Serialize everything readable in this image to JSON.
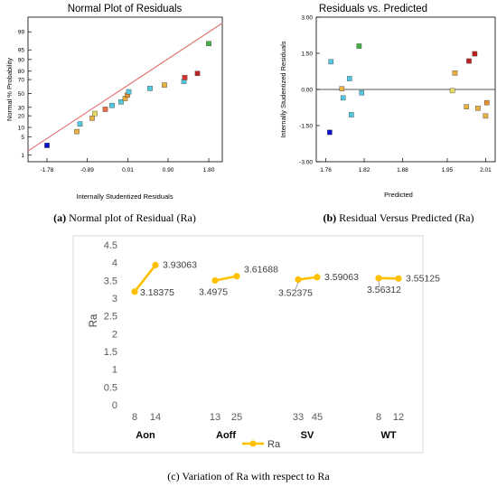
{
  "chart_data": [
    {
      "type": "scatter",
      "title": "Normal Plot of Residuals",
      "xlabel": "Internally Studentized Residuals",
      "ylabel": "Normal % Probability",
      "xlim": [
        -2.2,
        2.1
      ],
      "x_ticks": [
        "-1.78",
        "-0.89",
        "0.01",
        "0.90",
        "1.80"
      ],
      "y_ticks": [
        "1",
        "5",
        "10",
        "20",
        "30",
        "50",
        "70",
        "80",
        "90",
        "95",
        "99"
      ],
      "fit_line": {
        "x": [
          -2.2,
          2.1
        ],
        "p": [
          1.5,
          99.6
        ]
      },
      "points": [
        {
          "x": -1.78,
          "p": 2.5,
          "color": "#1010c8"
        },
        {
          "x": -1.12,
          "p": 7.5,
          "color": "#e8b040"
        },
        {
          "x": -1.05,
          "p": 12.5,
          "color": "#50c8e0"
        },
        {
          "x": -0.78,
          "p": 17.5,
          "color": "#e8b040"
        },
        {
          "x": -0.72,
          "p": 22.5,
          "color": "#e8d860"
        },
        {
          "x": -0.49,
          "p": 27.5,
          "color": "#e87040"
        },
        {
          "x": -0.34,
          "p": 32.5,
          "color": "#50c8e0"
        },
        {
          "x": -0.14,
          "p": 37.5,
          "color": "#50c8e0"
        },
        {
          "x": -0.05,
          "p": 42.5,
          "color": "#e8b040"
        },
        {
          "x": 0.0,
          "p": 47.5,
          "color": "#e89030"
        },
        {
          "x": 0.03,
          "p": 52.5,
          "color": "#50c8e0"
        },
        {
          "x": 0.5,
          "p": 57.5,
          "color": "#50c8e0"
        },
        {
          "x": 0.82,
          "p": 62.5,
          "color": "#e8b040"
        },
        {
          "x": 1.25,
          "p": 67.5,
          "color": "#50c8e0"
        },
        {
          "x": 1.27,
          "p": 72.5,
          "color": "#e03030"
        },
        {
          "x": 1.55,
          "p": 77.5,
          "color": "#c02020"
        },
        {
          "x": 1.8,
          "p": 97.0,
          "color": "#40b040"
        }
      ],
      "caption_bold": "(a)",
      "caption_text": " Normal plot of Residual (Ra)"
    },
    {
      "type": "scatter",
      "title": "Residuals vs. Predicted",
      "xlabel": "Predicted",
      "ylabel": "Internally Studentized Residuals",
      "xlim": [
        1.745,
        2.025
      ],
      "ylim": [
        -3.0,
        3.0
      ],
      "x_ticks": [
        "1.76",
        "1.82",
        "1.88",
        "1.95",
        "2.01"
      ],
      "y_ticks": [
        "3.00",
        "1.50",
        "0.00",
        "-1.50",
        "-3.00"
      ],
      "zero_line": 0.0,
      "points": [
        {
          "x": 1.766,
          "y": -1.78,
          "color": "#1010c8"
        },
        {
          "x": 1.768,
          "y": 1.15,
          "color": "#50c8e0"
        },
        {
          "x": 1.785,
          "y": 0.03,
          "color": "#e8b040"
        },
        {
          "x": 1.787,
          "y": -0.35,
          "color": "#50c8e0"
        },
        {
          "x": 1.797,
          "y": 0.45,
          "color": "#50c8e0"
        },
        {
          "x": 1.8,
          "y": -1.05,
          "color": "#50c8e0"
        },
        {
          "x": 1.812,
          "y": 1.8,
          "color": "#40b040"
        },
        {
          "x": 1.816,
          "y": -0.14,
          "color": "#50c8e0"
        },
        {
          "x": 1.958,
          "y": -0.05,
          "color": "#e8d860"
        },
        {
          "x": 1.962,
          "y": 0.68,
          "color": "#e8b040"
        },
        {
          "x": 1.98,
          "y": -0.72,
          "color": "#e8b040"
        },
        {
          "x": 1.984,
          "y": 1.18,
          "color": "#c02020"
        },
        {
          "x": 1.993,
          "y": 1.48,
          "color": "#c02020"
        },
        {
          "x": 1.998,
          "y": -0.78,
          "color": "#e8b040"
        },
        {
          "x": 2.01,
          "y": -1.1,
          "color": "#e8b040"
        },
        {
          "x": 2.012,
          "y": -0.55,
          "color": "#e89030"
        }
      ],
      "caption_bold": "(b)",
      "caption_text": " Residual Versus Predicted (Ra)"
    },
    {
      "type": "line",
      "ylabel": "Ra",
      "ylim": [
        0,
        4.5
      ],
      "y_ticks": [
        "0",
        "0.5",
        "1",
        "1.5",
        "2",
        "2.5",
        "3",
        "3.5",
        "4",
        "4.5"
      ],
      "series_name": "Ra",
      "line_color": "#ffc000",
      "groups": [
        {
          "name": "Aon",
          "levels": [
            "8",
            "14"
          ],
          "values": [
            3.18375,
            3.93063
          ],
          "labels": [
            "3.18375",
            "3.93063"
          ]
        },
        {
          "name": "Aoff",
          "levels": [
            "13",
            "25"
          ],
          "values": [
            3.4975,
            3.61688
          ],
          "labels": [
            "3.4975",
            "3.61688"
          ]
        },
        {
          "name": "SV",
          "levels": [
            "33",
            "45"
          ],
          "values": [
            3.52375,
            3.59063
          ],
          "labels": [
            "3.52375",
            "3.59063"
          ]
        },
        {
          "name": "WT",
          "levels": [
            "8",
            "12"
          ],
          "values": [
            3.56312,
            3.55125
          ],
          "labels": [
            "3.56312",
            "3.55125"
          ]
        }
      ],
      "caption": "(c) Variation of Ra with respect to Ra"
    }
  ]
}
